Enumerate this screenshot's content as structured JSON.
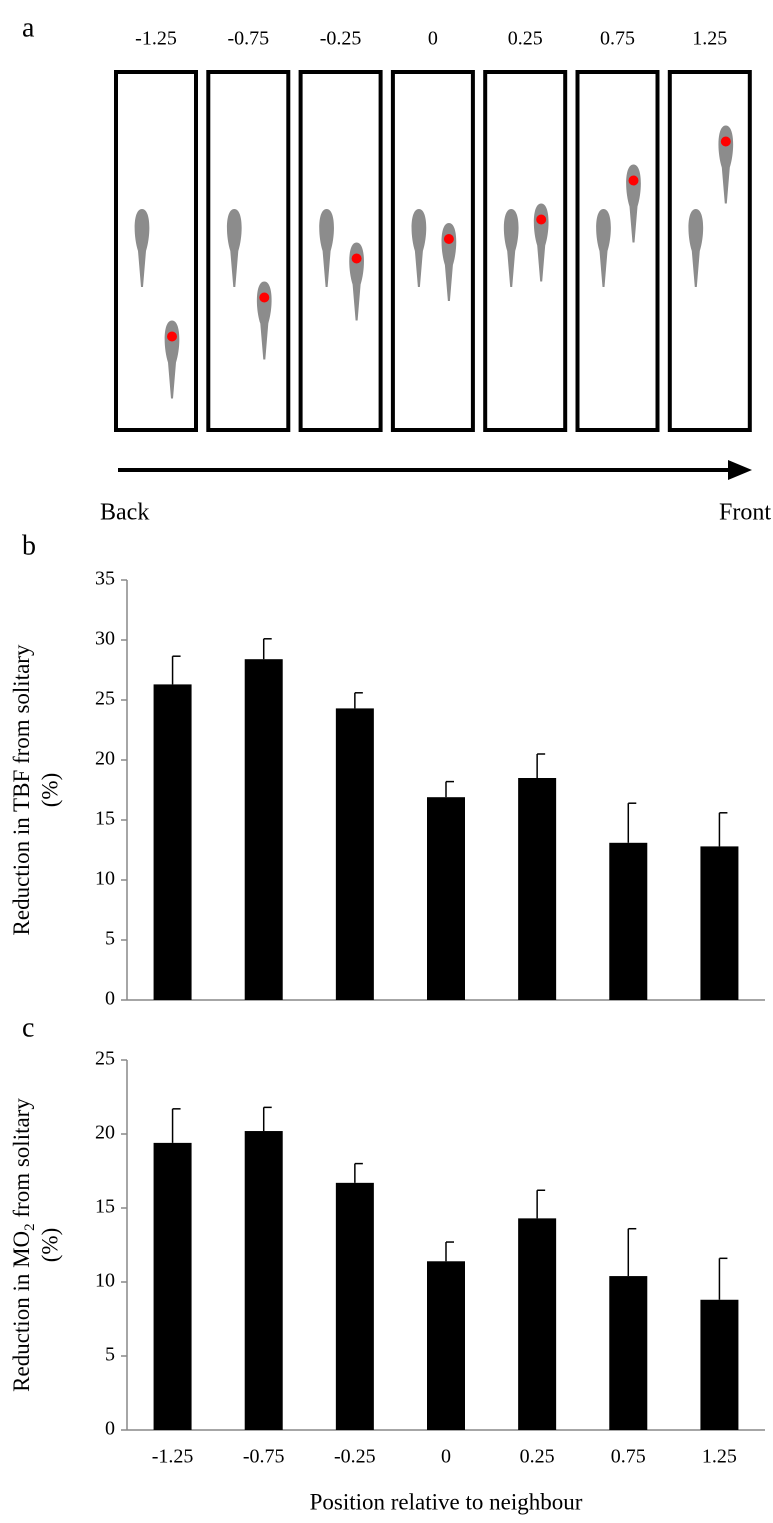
{
  "diagram": {
    "panel_label": "a",
    "positions": [
      -1.25,
      -0.75,
      -0.25,
      0,
      0.25,
      0.75,
      1.25
    ],
    "left_label": "Back",
    "right_label": "Front"
  },
  "chart_data": [
    {
      "type": "bar",
      "panel_label": "b",
      "y_label": {
        "text": "Reduction in TBF from solitary"
      },
      "y_label_unit": "(%)",
      "categories": [
        null,
        null,
        null,
        null,
        null,
        null,
        null
      ],
      "values": [
        26.3,
        28.4,
        24.3,
        16.9,
        18.5,
        13.1,
        12.8
      ],
      "errors": [
        2.35,
        1.7,
        1.3,
        1.3,
        2.0,
        3.3,
        2.8
      ],
      "color": "#000000",
      "ylim": [
        0,
        35
      ],
      "yticks": [
        0,
        5,
        10,
        15,
        20,
        25,
        30,
        35
      ]
    },
    {
      "type": "bar",
      "panel_label": "c",
      "y_label": {
        "text": "Reduction in MO",
        "subscript": "2",
        "after": " from solitary"
      },
      "y_label_unit": "(%)",
      "x_label": "Position relative to neighbour",
      "categories": [
        "-1.25",
        "-0.75",
        "-0.25",
        "0",
        "0.25",
        "0.75",
        "1.25"
      ],
      "values": [
        19.4,
        20.2,
        16.7,
        11.4,
        14.3,
        10.4,
        8.8
      ],
      "errors": [
        2.3,
        1.6,
        1.3,
        1.3,
        1.9,
        3.2,
        2.8
      ],
      "color": "#000000",
      "ylim": [
        0,
        25
      ],
      "yticks": [
        0,
        5,
        10,
        15,
        20,
        25
      ]
    }
  ]
}
